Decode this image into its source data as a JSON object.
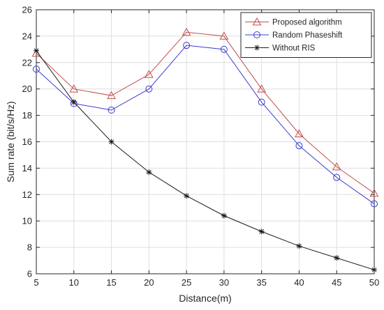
{
  "chart_data": {
    "type": "line",
    "xlabel": "Distance(m)",
    "ylabel": "Sum rate (bit/s/Hz)",
    "x": [
      5,
      10,
      15,
      20,
      25,
      30,
      35,
      40,
      45,
      50
    ],
    "xlim": [
      5,
      50
    ],
    "ylim": [
      6,
      26
    ],
    "xticks": [
      "5",
      "10",
      "15",
      "20",
      "25",
      "30",
      "35",
      "40",
      "45",
      "50"
    ],
    "yticks": [
      "6",
      "8",
      "10",
      "12",
      "14",
      "16",
      "18",
      "20",
      "22",
      "24",
      "26"
    ],
    "xtick_values": [
      5,
      10,
      15,
      20,
      25,
      30,
      35,
      40,
      45,
      50
    ],
    "ytick_values": [
      6,
      8,
      10,
      12,
      14,
      16,
      18,
      20,
      22,
      24,
      26
    ],
    "grid": true,
    "legend_position": "top-right",
    "series": [
      {
        "name": "Proposed algorithm",
        "color": "#c0504d",
        "marker": "triangle",
        "values": [
          22.7,
          20.0,
          19.5,
          21.1,
          24.3,
          24.0,
          20.0,
          16.6,
          14.1,
          12.1
        ]
      },
      {
        "name": "Random Phaseshift",
        "color": "#3b3bd1",
        "marker": "circle",
        "values": [
          21.5,
          18.9,
          18.4,
          20.0,
          23.3,
          23.0,
          19.0,
          15.7,
          13.3,
          11.3
        ]
      },
      {
        "name": "Without RIS",
        "color": "#1a1a1a",
        "marker": "asterisk",
        "values": [
          22.9,
          19.0,
          16.0,
          13.7,
          11.9,
          10.4,
          9.2,
          8.1,
          7.2,
          6.3
        ]
      }
    ]
  }
}
